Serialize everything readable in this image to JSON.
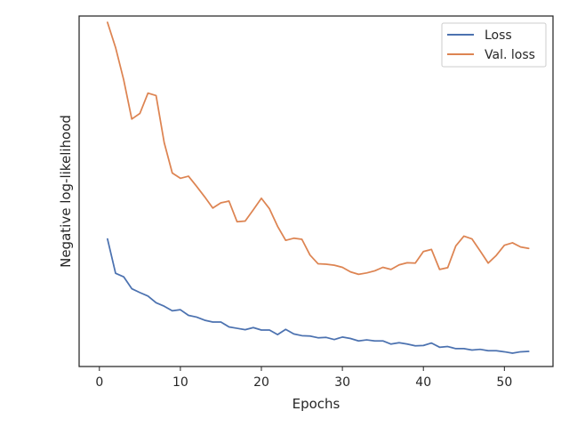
{
  "chart_data": {
    "type": "line",
    "title": "",
    "xlabel": "Epochs",
    "ylabel": "Negative log-likelihood",
    "xlim": [
      -2.5,
      56
    ],
    "ylim": [
      0.0,
      1.0
    ],
    "xticks": [
      0,
      10,
      20,
      30,
      40,
      50
    ],
    "yticks_shown": false,
    "grid": false,
    "legend_position": "top-right",
    "x": [
      1,
      2,
      3,
      4,
      5,
      6,
      7,
      8,
      9,
      10,
      11,
      12,
      13,
      14,
      15,
      16,
      17,
      18,
      19,
      20,
      21,
      22,
      23,
      24,
      25,
      26,
      27,
      28,
      29,
      30,
      31,
      32,
      33,
      34,
      35,
      36,
      37,
      38,
      39,
      40,
      41,
      42,
      43,
      44,
      45,
      46,
      47,
      48,
      49,
      50,
      51,
      52,
      53
    ],
    "series": [
      {
        "name": "Loss",
        "color": "#4c72b0",
        "values": [
          0.364,
          0.266,
          0.256,
          0.222,
          0.211,
          0.201,
          0.182,
          0.172,
          0.159,
          0.162,
          0.146,
          0.141,
          0.132,
          0.127,
          0.127,
          0.113,
          0.109,
          0.105,
          0.111,
          0.104,
          0.104,
          0.091,
          0.106,
          0.093,
          0.088,
          0.087,
          0.082,
          0.083,
          0.077,
          0.084,
          0.08,
          0.073,
          0.076,
          0.073,
          0.073,
          0.064,
          0.068,
          0.064,
          0.059,
          0.06,
          0.067,
          0.055,
          0.057,
          0.051,
          0.051,
          0.047,
          0.049,
          0.045,
          0.045,
          0.042,
          0.038,
          0.042,
          0.043
        ]
      },
      {
        "name": "Val. loss",
        "color": "#dd8452",
        "values": [
          0.982,
          0.91,
          0.818,
          0.706,
          0.722,
          0.78,
          0.773,
          0.639,
          0.552,
          0.537,
          0.543,
          0.514,
          0.484,
          0.452,
          0.467,
          0.472,
          0.413,
          0.415,
          0.447,
          0.48,
          0.45,
          0.4,
          0.36,
          0.366,
          0.363,
          0.318,
          0.293,
          0.292,
          0.289,
          0.283,
          0.27,
          0.263,
          0.267,
          0.273,
          0.283,
          0.277,
          0.29,
          0.296,
          0.295,
          0.328,
          0.334,
          0.277,
          0.282,
          0.344,
          0.372,
          0.364,
          0.33,
          0.295,
          0.317,
          0.346,
          0.353,
          0.341,
          0.337
        ]
      }
    ]
  }
}
